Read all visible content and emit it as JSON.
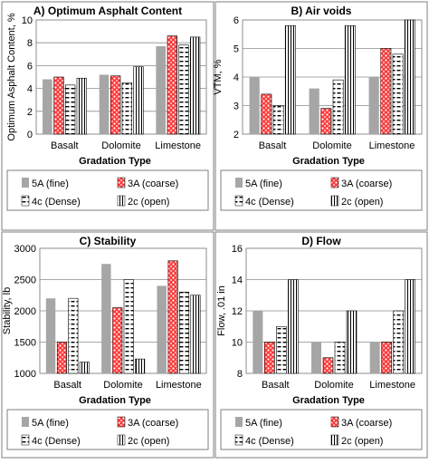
{
  "legend_labels": {
    "s5A": "5A (fine)",
    "s3A": "3A (coarse)",
    "s4c": "4c (Dense)",
    "s2c": "2c (open)"
  },
  "series_styles": {
    "s5A": {
      "fill": "#a6a6a6",
      "pattern": "solid"
    },
    "s3A": {
      "fill": "#ff3a3a",
      "pattern": "red-dots"
    },
    "s4c": {
      "fill": "#ffffff",
      "pattern": "dashes"
    },
    "s2c": {
      "fill": "#ffffff",
      "pattern": "vertical-lines"
    }
  },
  "chart_data": [
    {
      "type": "bar",
      "title": "A) Optimum Asphalt Content",
      "xlabel": "Gradation Type",
      "ylabel": "Optimum Asphalt Content, %",
      "categories": [
        "Basalt",
        "Dolomite",
        "Limestone"
      ],
      "ylim": [
        0,
        10
      ],
      "yticks": [
        "0",
        "2",
        "4",
        "6",
        "8",
        "10"
      ],
      "grid": true,
      "legend_position": "bottom",
      "series": [
        {
          "key": "s5A",
          "name": "5A (fine)",
          "values": [
            4.8,
            5.2,
            7.7
          ]
        },
        {
          "key": "s3A",
          "name": "3A (coarse)",
          "values": [
            5.0,
            5.1,
            8.6
          ]
        },
        {
          "key": "s4c",
          "name": "4c (Dense)",
          "values": [
            4.3,
            4.5,
            7.8
          ]
        },
        {
          "key": "s2c",
          "name": "2c (open)",
          "values": [
            4.9,
            5.9,
            8.5
          ]
        }
      ]
    },
    {
      "type": "bar",
      "title": "B) Air voids",
      "xlabel": "Gradation Type",
      "ylabel": "VTM, %",
      "categories": [
        "Basalt",
        "Dolomite",
        "Limestone"
      ],
      "ylim": [
        2,
        6
      ],
      "yticks": [
        "2",
        "3",
        "4",
        "5",
        "6"
      ],
      "grid": true,
      "legend_position": "bottom",
      "series": [
        {
          "key": "s5A",
          "name": "5A (fine)",
          "values": [
            4.0,
            3.6,
            4.0
          ]
        },
        {
          "key": "s3A",
          "name": "3A (coarse)",
          "values": [
            3.4,
            2.9,
            5.0
          ]
        },
        {
          "key": "s4c",
          "name": "4c (Dense)",
          "values": [
            3.0,
            3.9,
            4.8
          ]
        },
        {
          "key": "s2c",
          "name": "2c (open)",
          "values": [
            5.8,
            5.8,
            6.0
          ]
        }
      ]
    },
    {
      "type": "bar",
      "title": "C) Stability",
      "xlabel": "Gradation Type",
      "ylabel": "Stability, lb",
      "categories": [
        "Basalt",
        "Dolomite",
        "Limestone"
      ],
      "ylim": [
        1000,
        3000
      ],
      "yticks": [
        "1000",
        "1500",
        "2000",
        "2500",
        "3000"
      ],
      "grid": true,
      "legend_position": "bottom",
      "series": [
        {
          "key": "s5A",
          "name": "5A (fine)",
          "values": [
            2200,
            2750,
            2400
          ]
        },
        {
          "key": "s3A",
          "name": "3A (coarse)",
          "values": [
            1500,
            2050,
            2800
          ]
        },
        {
          "key": "s4c",
          "name": "4c (Dense)",
          "values": [
            2200,
            2500,
            2300
          ]
        },
        {
          "key": "s2c",
          "name": "2c (open)",
          "values": [
            1180,
            1230,
            2250
          ]
        }
      ]
    },
    {
      "type": "bar",
      "title": "D) Flow",
      "xlabel": "Gradation Type",
      "ylabel": "Flow, .01 in",
      "categories": [
        "Basalt",
        "Dolomite",
        "Limestone"
      ],
      "ylim": [
        8,
        16
      ],
      "yticks": [
        "8",
        "10",
        "12",
        "14",
        "16"
      ],
      "grid": true,
      "legend_position": "bottom",
      "series": [
        {
          "key": "s5A",
          "name": "5A (fine)",
          "values": [
            12,
            10,
            10
          ]
        },
        {
          "key": "s3A",
          "name": "3A (coarse)",
          "values": [
            10,
            9,
            10
          ]
        },
        {
          "key": "s4c",
          "name": "4c (Dense)",
          "values": [
            11,
            10,
            12
          ]
        },
        {
          "key": "s2c",
          "name": "2c (open)",
          "values": [
            14,
            12,
            14
          ]
        }
      ]
    }
  ]
}
